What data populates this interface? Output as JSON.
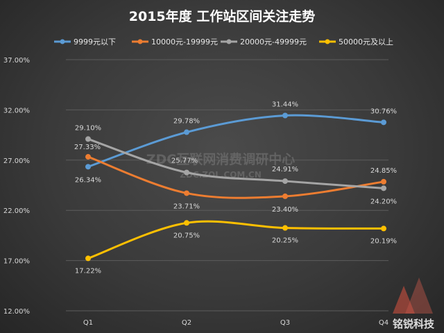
{
  "chart_data": {
    "type": "line",
    "title": "2015年度 工作站区间关注走势",
    "categories": [
      "Q1",
      "Q2",
      "Q3",
      "Q4"
    ],
    "ylim": [
      12,
      37
    ],
    "yticks": [
      "12.00%",
      "17.00%",
      "22.00%",
      "27.00%",
      "32.00%",
      "37.00%"
    ],
    "ytick_values": [
      12,
      17,
      22,
      27,
      32,
      37
    ],
    "grid": true,
    "legend_position": "top",
    "series": [
      {
        "name": "9999元以下",
        "color": "#5b9bd5",
        "values": [
          26.34,
          29.78,
          31.44,
          30.76
        ],
        "labels": [
          "26.34%",
          "29.78%",
          "31.44%",
          "30.76%"
        ]
      },
      {
        "name": "10000元-19999元",
        "color": "#ed7d31",
        "values": [
          27.33,
          23.71,
          23.4,
          24.85
        ],
        "labels": [
          "27.33%",
          "23.71%",
          "23.40%",
          "24.85%"
        ]
      },
      {
        "name": "20000元-49999元",
        "color": "#a5a5a5",
        "values": [
          29.1,
          25.77,
          24.91,
          24.2
        ],
        "labels": [
          "29.10%",
          "25.77%",
          "24.91%",
          "24.20%"
        ]
      },
      {
        "name": "50000元及以上",
        "color": "#ffc000",
        "values": [
          17.22,
          20.75,
          20.25,
          20.19
        ],
        "labels": [
          "17.22%",
          "20.75%",
          "20.25%",
          "20.19%"
        ]
      }
    ]
  },
  "watermark": {
    "line1": "ZDC互联网消费调研中心",
    "line2": "ZDC.ZOL.COM.CN"
  },
  "brand": {
    "text": "铭锐科技"
  }
}
